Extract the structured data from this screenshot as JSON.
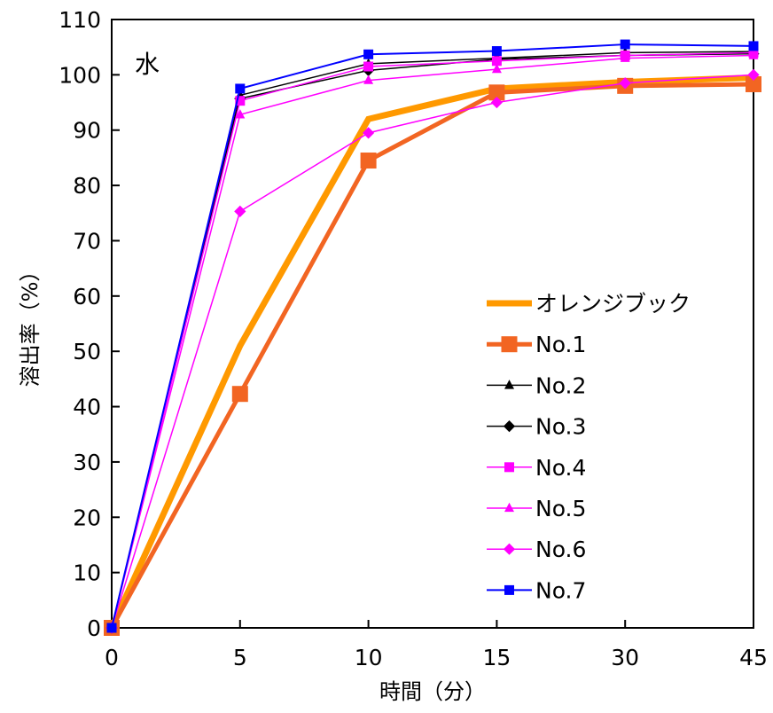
{
  "chart_data": {
    "type": "line",
    "categories": [
      "0",
      "5",
      "10",
      "15",
      "30",
      "45"
    ],
    "xlabel": "時間（分）",
    "ylabel": "溶出率（%）",
    "annotation": "水",
    "ylim": [
      0,
      110
    ],
    "yticks": [
      0,
      10,
      20,
      30,
      40,
      50,
      60,
      70,
      80,
      90,
      100,
      110
    ],
    "grid": false,
    "legend_position": "right",
    "series": [
      {
        "name": "オレンジブック",
        "color": "#ff9900",
        "marker": "none",
        "line_width": 7,
        "values": [
          0,
          51,
          92,
          97.5,
          98.7,
          99.5
        ]
      },
      {
        "name": "No.1",
        "color": "#f26522",
        "marker": "square",
        "line_width": 5,
        "values": [
          0,
          42.3,
          84.5,
          96.8,
          98,
          98.3
        ]
      },
      {
        "name": "No.2",
        "color": "#000000",
        "marker": "triangle",
        "line_width": 1.5,
        "values": [
          0,
          96.3,
          102,
          103,
          104,
          104.2
        ]
      },
      {
        "name": "No.3",
        "color": "#000000",
        "marker": "diamond",
        "line_width": 1.5,
        "values": [
          0,
          95.7,
          100.8,
          102.8,
          103.5,
          103.8
        ]
      },
      {
        "name": "No.4",
        "color": "#ff00ff",
        "marker": "square",
        "line_width": 1.5,
        "values": [
          0,
          95.3,
          101.5,
          102.5,
          103.5,
          104
        ]
      },
      {
        "name": "No.5",
        "color": "#ff00ff",
        "marker": "triangle",
        "line_width": 1.5,
        "values": [
          0,
          92.8,
          99,
          101,
          103,
          103.5
        ]
      },
      {
        "name": "No.6",
        "color": "#ff00ff",
        "marker": "diamond",
        "line_width": 1.5,
        "values": [
          0,
          75.3,
          89.5,
          95,
          98.5,
          100
        ]
      },
      {
        "name": "No.7",
        "color": "#0000ff",
        "marker": "square",
        "line_width": 2,
        "values": [
          0,
          97.5,
          103.7,
          104.3,
          105.5,
          105.2
        ]
      }
    ]
  }
}
